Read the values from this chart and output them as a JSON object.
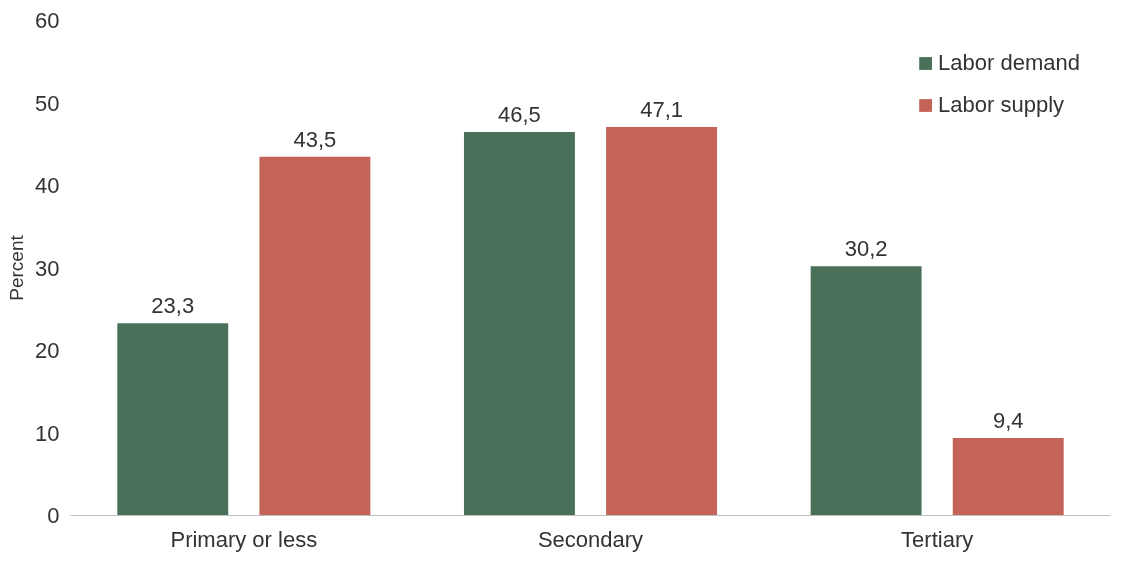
{
  "chart_data": {
    "type": "bar",
    "ylabel": "Percent",
    "categories": [
      "Primary or less",
      "Secondary",
      "Tertiary"
    ],
    "series": [
      {
        "name": "Labor demand",
        "color": "#4a7059",
        "values": [
          23.3,
          46.5,
          30.2
        ],
        "value_labels": [
          "23,3",
          "46,5",
          "30,2"
        ]
      },
      {
        "name": "Labor supply",
        "color": "#c46358",
        "values": [
          43.5,
          47.1,
          9.4
        ],
        "value_labels": [
          "43,5",
          "47,1",
          "9,4"
        ]
      }
    ],
    "ylim": [
      0,
      60
    ],
    "yticks": [
      0,
      10,
      20,
      30,
      40,
      50,
      60
    ],
    "grid": false,
    "legend": "top right"
  }
}
